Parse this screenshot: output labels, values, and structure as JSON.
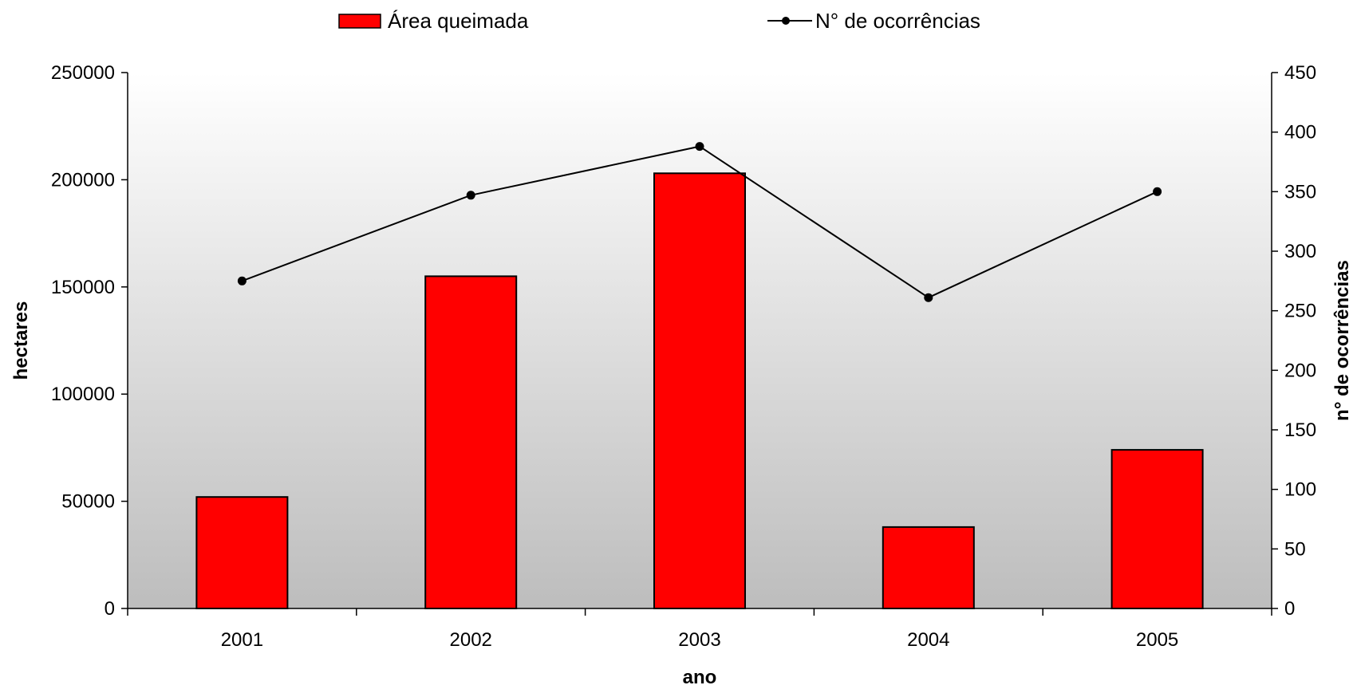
{
  "chart_data": {
    "type": "bar",
    "categories": [
      "2001",
      "2002",
      "2003",
      "2004",
      "2005"
    ],
    "series": [
      {
        "name": "Área queimada",
        "type": "bar",
        "axis": "left",
        "color": "#ff0000",
        "values": [
          52000,
          155000,
          203000,
          38000,
          74000
        ]
      },
      {
        "name": "N° de ocorrências",
        "type": "line",
        "axis": "right",
        "color": "#000000",
        "values": [
          275,
          347,
          388,
          261,
          350
        ]
      }
    ],
    "xlabel": "ano",
    "ylabel": "hectares",
    "y2label": "n° de ocorrências",
    "ylim": [
      0,
      250000
    ],
    "y2lim": [
      0,
      450
    ],
    "yticks": [
      "0",
      "50000",
      "100000",
      "150000",
      "200000",
      "250000"
    ],
    "y2ticks": [
      "0",
      "50",
      "100",
      "150",
      "200",
      "250",
      "300",
      "350",
      "400",
      "450"
    ],
    "legend_position": "top",
    "grid": false,
    "plot_background": "gradient white-to-gray"
  }
}
